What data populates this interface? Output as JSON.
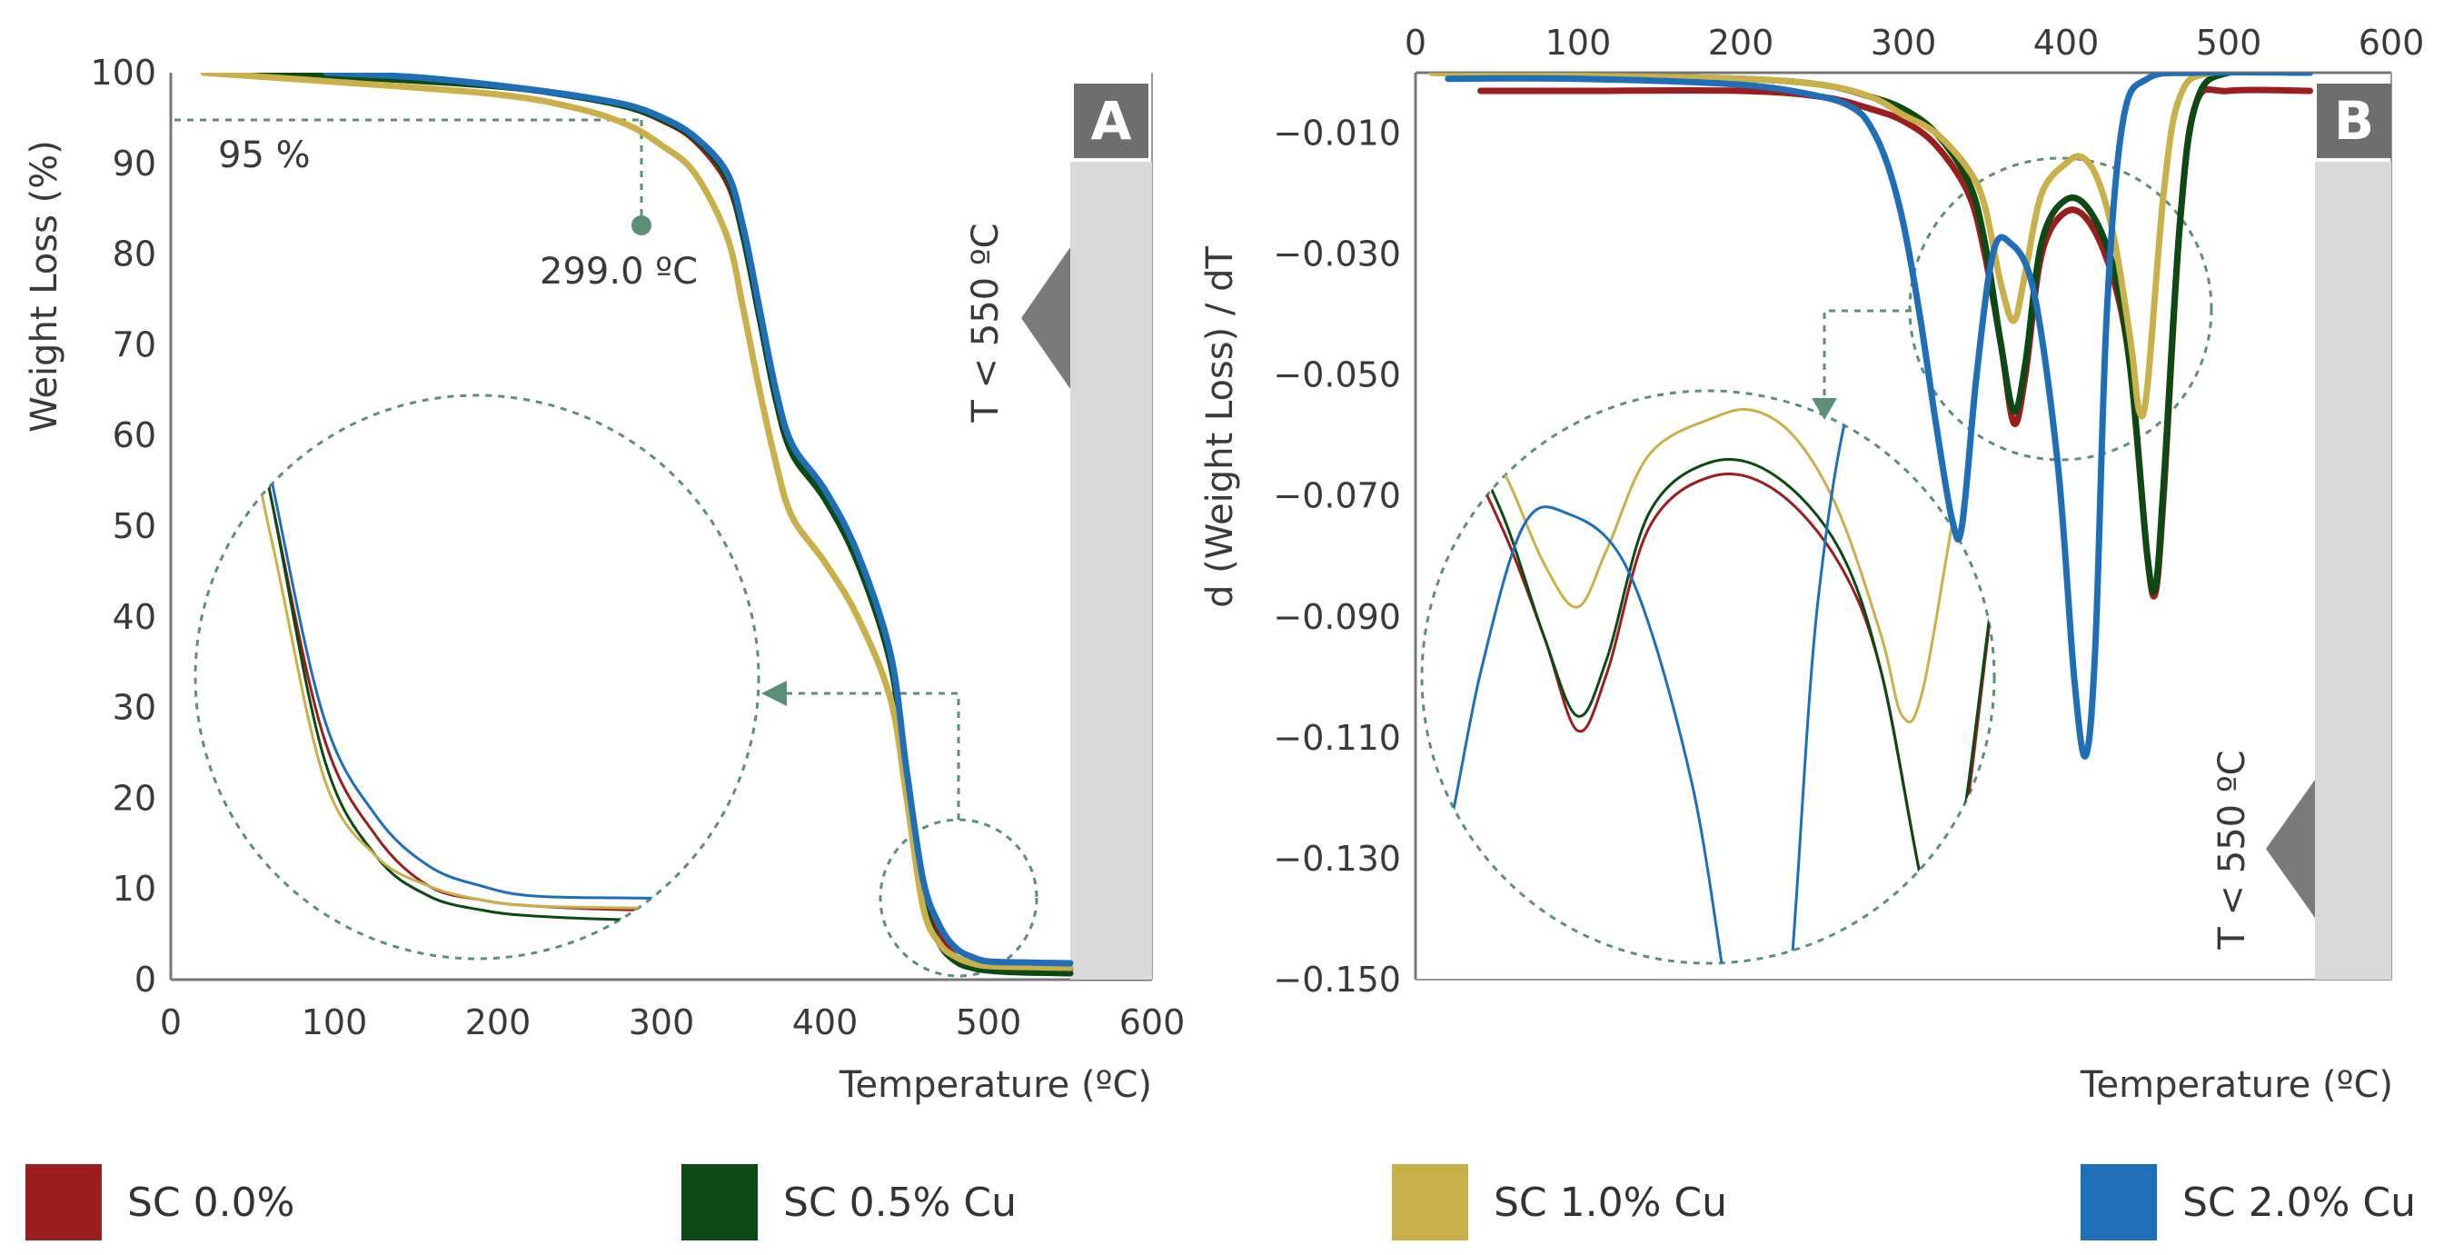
{
  "chart_data": [
    {
      "id": "A",
      "type": "line",
      "panel_label": "A",
      "title": "",
      "xlabel": "Temperature (ºC)",
      "ylabel": "Weight Loss (%)",
      "xlim": [
        0,
        600
      ],
      "ylim": [
        0,
        100
      ],
      "xticks": [
        0,
        100,
        200,
        300,
        400,
        500,
        600
      ],
      "yticks": [
        0,
        10,
        20,
        30,
        40,
        50,
        60,
        70,
        80,
        90,
        100
      ],
      "x_tick_labels": [
        "0",
        "100",
        "200",
        "300",
        "400",
        "500",
        "600"
      ],
      "y_tick_labels": [
        "0",
        "10",
        "20",
        "30",
        "40",
        "50",
        "60",
        "70",
        "80",
        "90",
        "100"
      ],
      "annotations": {
        "threshold_label": "95 %",
        "threshold_value": 95,
        "onset_label": "299.0 ºC",
        "onset_value": 299.0,
        "region_label": "T < 550 ºC",
        "region_start": 550
      },
      "series": [
        {
          "name": "SC 0.0%",
          "x": [
            30,
            100,
            200,
            250,
            280,
            300,
            320,
            340,
            350,
            360,
            370,
            380,
            400,
            420,
            440,
            450,
            460,
            470,
            480,
            490,
            500,
            520,
            550
          ],
          "y": [
            100,
            99.6,
            98.5,
            97.3,
            96.2,
            94.8,
            92.6,
            88,
            82,
            73,
            64,
            58,
            53,
            46,
            35,
            22,
            10,
            5,
            2.5,
            1.8,
            1.5,
            1.3,
            1.2
          ]
        },
        {
          "name": "SC 0.5% Cu",
          "x": [
            30,
            100,
            200,
            250,
            280,
            300,
            320,
            340,
            350,
            360,
            370,
            380,
            400,
            420,
            440,
            450,
            460,
            470,
            480,
            490,
            500,
            520,
            550
          ],
          "y": [
            100,
            99.6,
            98.5,
            97.3,
            96.2,
            94.9,
            92.8,
            88.5,
            82,
            73,
            64,
            58,
            53,
            46,
            35,
            22,
            9,
            4,
            2,
            1.3,
            1,
            0.8,
            0.7
          ]
        },
        {
          "name": "SC 1.0% Cu",
          "x": [
            20,
            100,
            200,
            250,
            280,
            300,
            320,
            340,
            350,
            360,
            370,
            380,
            400,
            420,
            440,
            450,
            460,
            470,
            480,
            490,
            500,
            520,
            550
          ],
          "y": [
            100,
            99,
            97.6,
            96,
            94.2,
            92,
            89,
            82,
            74,
            65,
            57,
            51,
            46,
            40,
            31,
            20,
            8,
            4,
            2.5,
            1.8,
            1.5,
            1.4,
            1.3
          ]
        },
        {
          "name": "SC 2.0% Cu",
          "x": [
            95,
            150,
            200,
            250,
            280,
            300,
            320,
            340,
            350,
            360,
            370,
            380,
            400,
            420,
            440,
            450,
            460,
            470,
            480,
            490,
            500,
            520,
            550
          ],
          "y": [
            100,
            99.5,
            98.6,
            97.4,
            96.4,
            95.1,
            93,
            89,
            83,
            74,
            65,
            59,
            54,
            47,
            36,
            23,
            11,
            6,
            3.5,
            2.5,
            2,
            1.9,
            1.8
          ]
        }
      ]
    },
    {
      "id": "B",
      "type": "line",
      "panel_label": "B",
      "title": "",
      "xlabel": "Temperature (ºC)",
      "ylabel": "d (Weight Loss) / dT",
      "xlim": [
        0,
        600
      ],
      "ylim": [
        -0.15,
        0
      ],
      "xticks": [
        0,
        100,
        200,
        300,
        400,
        500,
        600
      ],
      "yticks": [
        -0.01,
        -0.03,
        -0.05,
        -0.07,
        -0.09,
        -0.11,
        -0.13,
        -0.15
      ],
      "x_tick_labels": [
        "0",
        "100",
        "200",
        "300",
        "400",
        "500",
        "600"
      ],
      "y_tick_labels": [
        "−0.010",
        "−0.030",
        "−0.050",
        "−0.070",
        "−0.090",
        "−0.110",
        "−0.130",
        "−0.150"
      ],
      "annotations": {
        "region_label": "T < 550 ºC",
        "region_start": 550
      },
      "series": [
        {
          "name": "SC 0.0%",
          "x": [
            40,
            100,
            200,
            250,
            280,
            300,
            320,
            340,
            350,
            360,
            368,
            375,
            385,
            400,
            415,
            430,
            440,
            450,
            455,
            460,
            470,
            480,
            500,
            550
          ],
          "y": [
            -0.003,
            -0.003,
            -0.003,
            -0.004,
            -0.006,
            -0.008,
            -0.012,
            -0.02,
            -0.03,
            -0.045,
            -0.058,
            -0.05,
            -0.03,
            -0.023,
            -0.025,
            -0.035,
            -0.05,
            -0.08,
            -0.086,
            -0.07,
            -0.025,
            -0.005,
            -0.003,
            -0.003
          ]
        },
        {
          "name": "SC 0.5% Cu",
          "x": [
            10,
            100,
            200,
            250,
            280,
            300,
            320,
            340,
            350,
            360,
            368,
            375,
            385,
            400,
            415,
            430,
            440,
            450,
            455,
            460,
            470,
            480,
            500,
            550
          ],
          "y": [
            0,
            -0.0005,
            -0.001,
            -0.002,
            -0.004,
            -0.006,
            -0.01,
            -0.018,
            -0.028,
            -0.045,
            -0.056,
            -0.048,
            -0.028,
            -0.021,
            -0.023,
            -0.033,
            -0.05,
            -0.08,
            -0.085,
            -0.068,
            -0.025,
            -0.005,
            0,
            0
          ]
        },
        {
          "name": "SC 1.0% Cu",
          "x": [
            10,
            100,
            200,
            250,
            280,
            300,
            320,
            340,
            350,
            360,
            368,
            375,
            385,
            400,
            410,
            420,
            430,
            440,
            445,
            450,
            460,
            470,
            490,
            550
          ],
          "y": [
            0,
            -0.0005,
            -0.001,
            -0.002,
            -0.004,
            -0.007,
            -0.01,
            -0.016,
            -0.022,
            -0.035,
            -0.041,
            -0.033,
            -0.02,
            -0.015,
            -0.014,
            -0.018,
            -0.028,
            -0.045,
            -0.056,
            -0.052,
            -0.02,
            -0.004,
            0,
            0
          ]
        },
        {
          "name": "SC 2.0% Cu",
          "x": [
            20,
            100,
            200,
            250,
            270,
            280,
            290,
            300,
            310,
            320,
            330,
            336,
            345,
            355,
            365,
            380,
            395,
            405,
            412,
            418,
            425,
            435,
            450,
            480,
            550
          ],
          "y": [
            -0.001,
            -0.001,
            -0.002,
            -0.004,
            -0.006,
            -0.009,
            -0.015,
            -0.025,
            -0.04,
            -0.058,
            -0.074,
            -0.075,
            -0.05,
            -0.03,
            -0.028,
            -0.036,
            -0.065,
            -0.1,
            -0.113,
            -0.095,
            -0.04,
            -0.008,
            -0.001,
            0,
            0
          ]
        }
      ]
    }
  ],
  "legend": [
    {
      "label": "SC 0.0%",
      "color": "#9b1d1d"
    },
    {
      "label": "SC 0.5% Cu",
      "color": "#0b4a12"
    },
    {
      "label": "SC 1.0% Cu",
      "color": "#c9b04a"
    },
    {
      "label": "SC 2.0% Cu",
      "color": "#1f6fb8"
    }
  ]
}
